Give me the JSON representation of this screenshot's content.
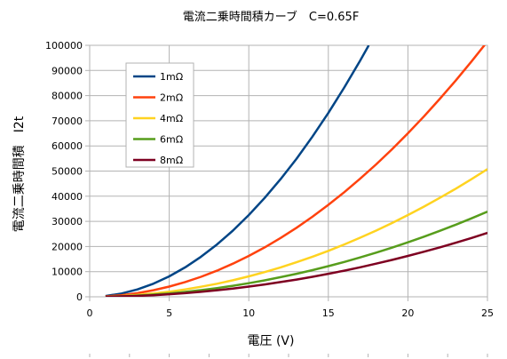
{
  "chart_data": {
    "type": "line",
    "title": "電流二乗時間積カーブ　C=0.65F",
    "xlabel": "電圧 (V)",
    "ylabel": "電流二乗時間積　I2t",
    "xlim": [
      0,
      25
    ],
    "ylim": [
      0,
      100000
    ],
    "x_ticks": [
      "0",
      "5",
      "10",
      "15",
      "20",
      "25"
    ],
    "y_ticks": [
      "0",
      "10000",
      "20000",
      "30000",
      "40000",
      "50000",
      "60000",
      "70000",
      "80000",
      "90000",
      "100000"
    ],
    "grid": true,
    "legend_position": "top-left",
    "x": [
      1,
      2,
      3,
      4,
      5,
      6,
      7,
      8,
      9,
      10,
      11,
      12,
      13,
      14,
      15,
      16,
      17,
      18,
      19,
      20,
      21,
      22,
      23,
      24,
      25
    ],
    "series": [
      {
        "name": "1mΩ",
        "color": "#004586",
        "values": [
          325,
          1300,
          2925,
          5200,
          8125,
          11700,
          15925,
          20800,
          26325,
          32500,
          39325,
          46800,
          54925,
          63700,
          73125,
          83200,
          93925,
          null,
          null,
          null,
          null,
          null,
          null,
          null,
          null
        ]
      },
      {
        "name": "2mΩ",
        "color": "#ff420e",
        "values": [
          163,
          650,
          1463,
          2600,
          4063,
          5850,
          7963,
          10400,
          13163,
          16250,
          19663,
          23400,
          27463,
          31850,
          36563,
          41600,
          46963,
          52650,
          58663,
          65000,
          71663,
          78650,
          85963,
          93600,
          101563
        ]
      },
      {
        "name": "4mΩ",
        "color": "#ffd320",
        "values": [
          81,
          325,
          731,
          1300,
          2031,
          2925,
          3981,
          5200,
          6581,
          8125,
          9831,
          11700,
          13731,
          15925,
          18281,
          20800,
          23481,
          26325,
          29331,
          32500,
          35831,
          39325,
          42981,
          46800,
          50781
        ]
      },
      {
        "name": "6mΩ",
        "color": "#579d1c",
        "values": [
          54,
          217,
          488,
          867,
          1354,
          1950,
          2654,
          3467,
          4388,
          5417,
          6554,
          7800,
          9154,
          10617,
          12188,
          13867,
          15654,
          17550,
          19554,
          21667,
          23888,
          26217,
          28654,
          31200,
          33854
        ]
      },
      {
        "name": "8mΩ",
        "color": "#7e0021",
        "values": [
          41,
          163,
          366,
          650,
          1016,
          1463,
          1991,
          2600,
          3291,
          4063,
          4916,
          5850,
          6866,
          7963,
          9141,
          10400,
          11741,
          13163,
          14666,
          16250,
          17916,
          19663,
          21491,
          23400,
          25391
        ]
      }
    ]
  }
}
